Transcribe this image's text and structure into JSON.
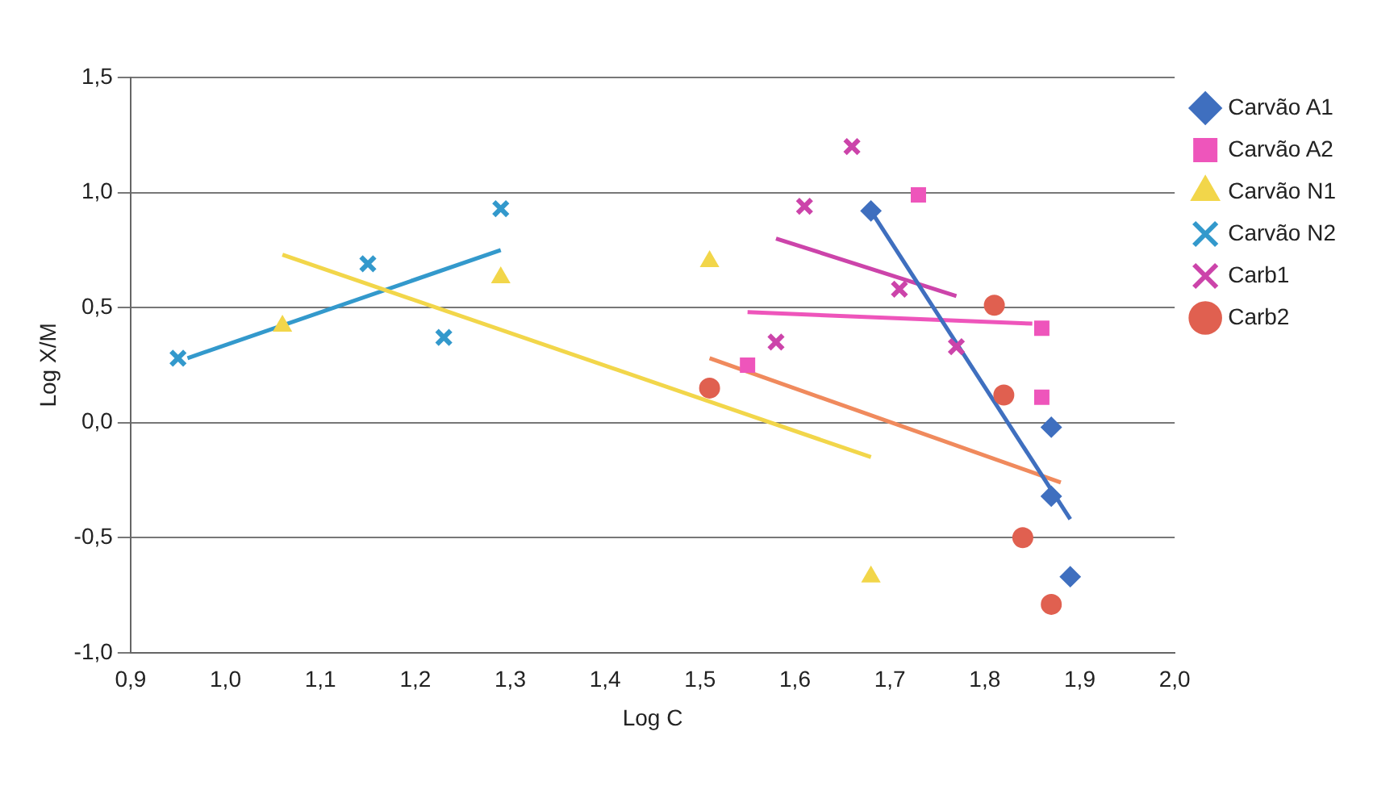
{
  "chart_data": {
    "type": "scatter",
    "xlabel": "Log C",
    "ylabel": "Log X/M",
    "xlim": [
      0.9,
      2.0
    ],
    "xticks": [
      {
        "value": 0.9,
        "label": "0,9"
      },
      {
        "value": 1.0,
        "label": "1,0"
      },
      {
        "value": 1.1,
        "label": "1,1"
      },
      {
        "value": 1.2,
        "label": "1,2"
      },
      {
        "value": 1.3,
        "label": "1,3"
      },
      {
        "value": 1.4,
        "label": "1,4"
      },
      {
        "value": 1.5,
        "label": "1,5"
      },
      {
        "value": 1.6,
        "label": "1,6"
      },
      {
        "value": 1.7,
        "label": "1,7"
      },
      {
        "value": 1.8,
        "label": "1,8"
      },
      {
        "value": 1.9,
        "label": "1,9"
      },
      {
        "value": 2.0,
        "label": "2,0"
      }
    ],
    "ylim": [
      -1.0,
      1.5
    ],
    "yticks": [
      {
        "value": -1.0,
        "label": "-1,0"
      },
      {
        "value": -0.5,
        "label": "-0,5"
      },
      {
        "value": 0,
        "label": "0,0"
      },
      {
        "value": 0.5,
        "label": "0,5"
      },
      {
        "value": 1.0,
        "label": "1,0"
      },
      {
        "value": 1.5,
        "label": "1,5"
      }
    ],
    "grid": "y",
    "legend": "right",
    "series": [
      {
        "name": "Carvão A1",
        "color": "#3f6fbf",
        "marker": "diamond",
        "x": [
          1.68,
          1.87,
          1.87,
          1.89
        ],
        "values": [
          0.92,
          -0.02,
          -0.32,
          -0.67
        ]
      },
      {
        "name": "Carvão A2",
        "color": "#ee55bb",
        "marker": "square",
        "x": [
          1.73,
          1.55,
          1.86,
          1.86
        ],
        "values": [
          0.99,
          0.25,
          0.41,
          0.11
        ]
      },
      {
        "name": "Carvão N1",
        "color": "#f2d64a",
        "marker": "triangle",
        "x": [
          1.06,
          1.29,
          1.51,
          1.68
        ],
        "values": [
          0.42,
          0.63,
          0.7,
          -0.67
        ]
      },
      {
        "name": "Carvão N2",
        "color": "#3399cc",
        "marker": "cross",
        "x": [
          0.95,
          1.15,
          1.23,
          1.29
        ],
        "values": [
          0.28,
          0.69,
          0.37,
          0.93
        ]
      },
      {
        "name": "Carb1",
        "color": "#cc44aa",
        "marker": "cross",
        "x": [
          1.66,
          1.61,
          1.71,
          1.58,
          1.77
        ],
        "values": [
          1.2,
          0.94,
          0.58,
          0.35,
          0.33
        ]
      },
      {
        "name": "Carb2",
        "color": "#e06050",
        "marker": "circle",
        "x": [
          1.51,
          1.81,
          1.82,
          1.84,
          1.87
        ],
        "values": [
          0.15,
          0.51,
          0.12,
          -0.5,
          -0.79
        ]
      },
      {
        "type": "line",
        "color": "#3f6fbf",
        "marker": "none",
        "x": [
          1.68,
          1.89
        ],
        "values": [
          0.92,
          -0.42
        ]
      },
      {
        "type": "line",
        "color": "#ee55bb",
        "marker": "none",
        "x": [
          1.55,
          1.85
        ],
        "values": [
          0.48,
          0.43
        ]
      },
      {
        "type": "line",
        "color": "#f2d64a",
        "marker": "none",
        "x": [
          1.06,
          1.68
        ],
        "values": [
          0.73,
          -0.15
        ]
      },
      {
        "type": "line",
        "color": "#3399cc",
        "marker": "none",
        "x": [
          0.96,
          1.29
        ],
        "values": [
          0.28,
          0.75
        ]
      },
      {
        "type": "line",
        "color": "#cc44aa",
        "marker": "none",
        "x": [
          1.58,
          1.77
        ],
        "values": [
          0.8,
          0.55
        ]
      },
      {
        "type": "line",
        "color": "#f08a5d",
        "marker": "none",
        "x": [
          1.51,
          1.88
        ],
        "values": [
          0.28,
          -0.26
        ]
      }
    ]
  }
}
